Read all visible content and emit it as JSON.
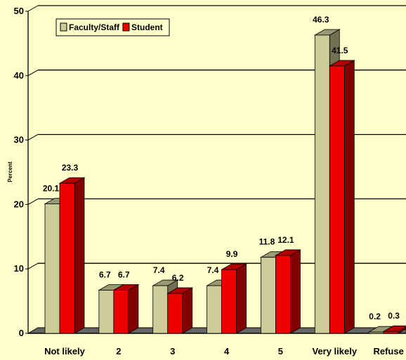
{
  "chart_data": {
    "type": "bar",
    "title": "",
    "xlabel": "",
    "ylabel": "Percent",
    "ylim": [
      0,
      50
    ],
    "yticks": [
      0,
      10,
      20,
      30,
      40,
      50
    ],
    "grid": true,
    "legend_position": "top-left",
    "categories": [
      "Not likely",
      "2",
      "3",
      "4",
      "5",
      "Very likely",
      "Refuse"
    ],
    "series": [
      {
        "name": "Faculty/Staff",
        "color": "#cccc99",
        "values": [
          20.1,
          6.7,
          7.4,
          7.4,
          11.8,
          46.3,
          0.2
        ],
        "labels": [
          "20.1",
          "6.7",
          "7.4",
          "7.4",
          "11.8",
          "46.3",
          "0.2"
        ]
      },
      {
        "name": "Student",
        "color": "#ee0000",
        "values": [
          23.3,
          6.7,
          6.2,
          9.9,
          12.1,
          41.5,
          0.3
        ],
        "labels": [
          "23.3",
          "6.7",
          "6.2",
          "9.9",
          "12.1",
          "41.5",
          "0.3"
        ]
      }
    ]
  }
}
